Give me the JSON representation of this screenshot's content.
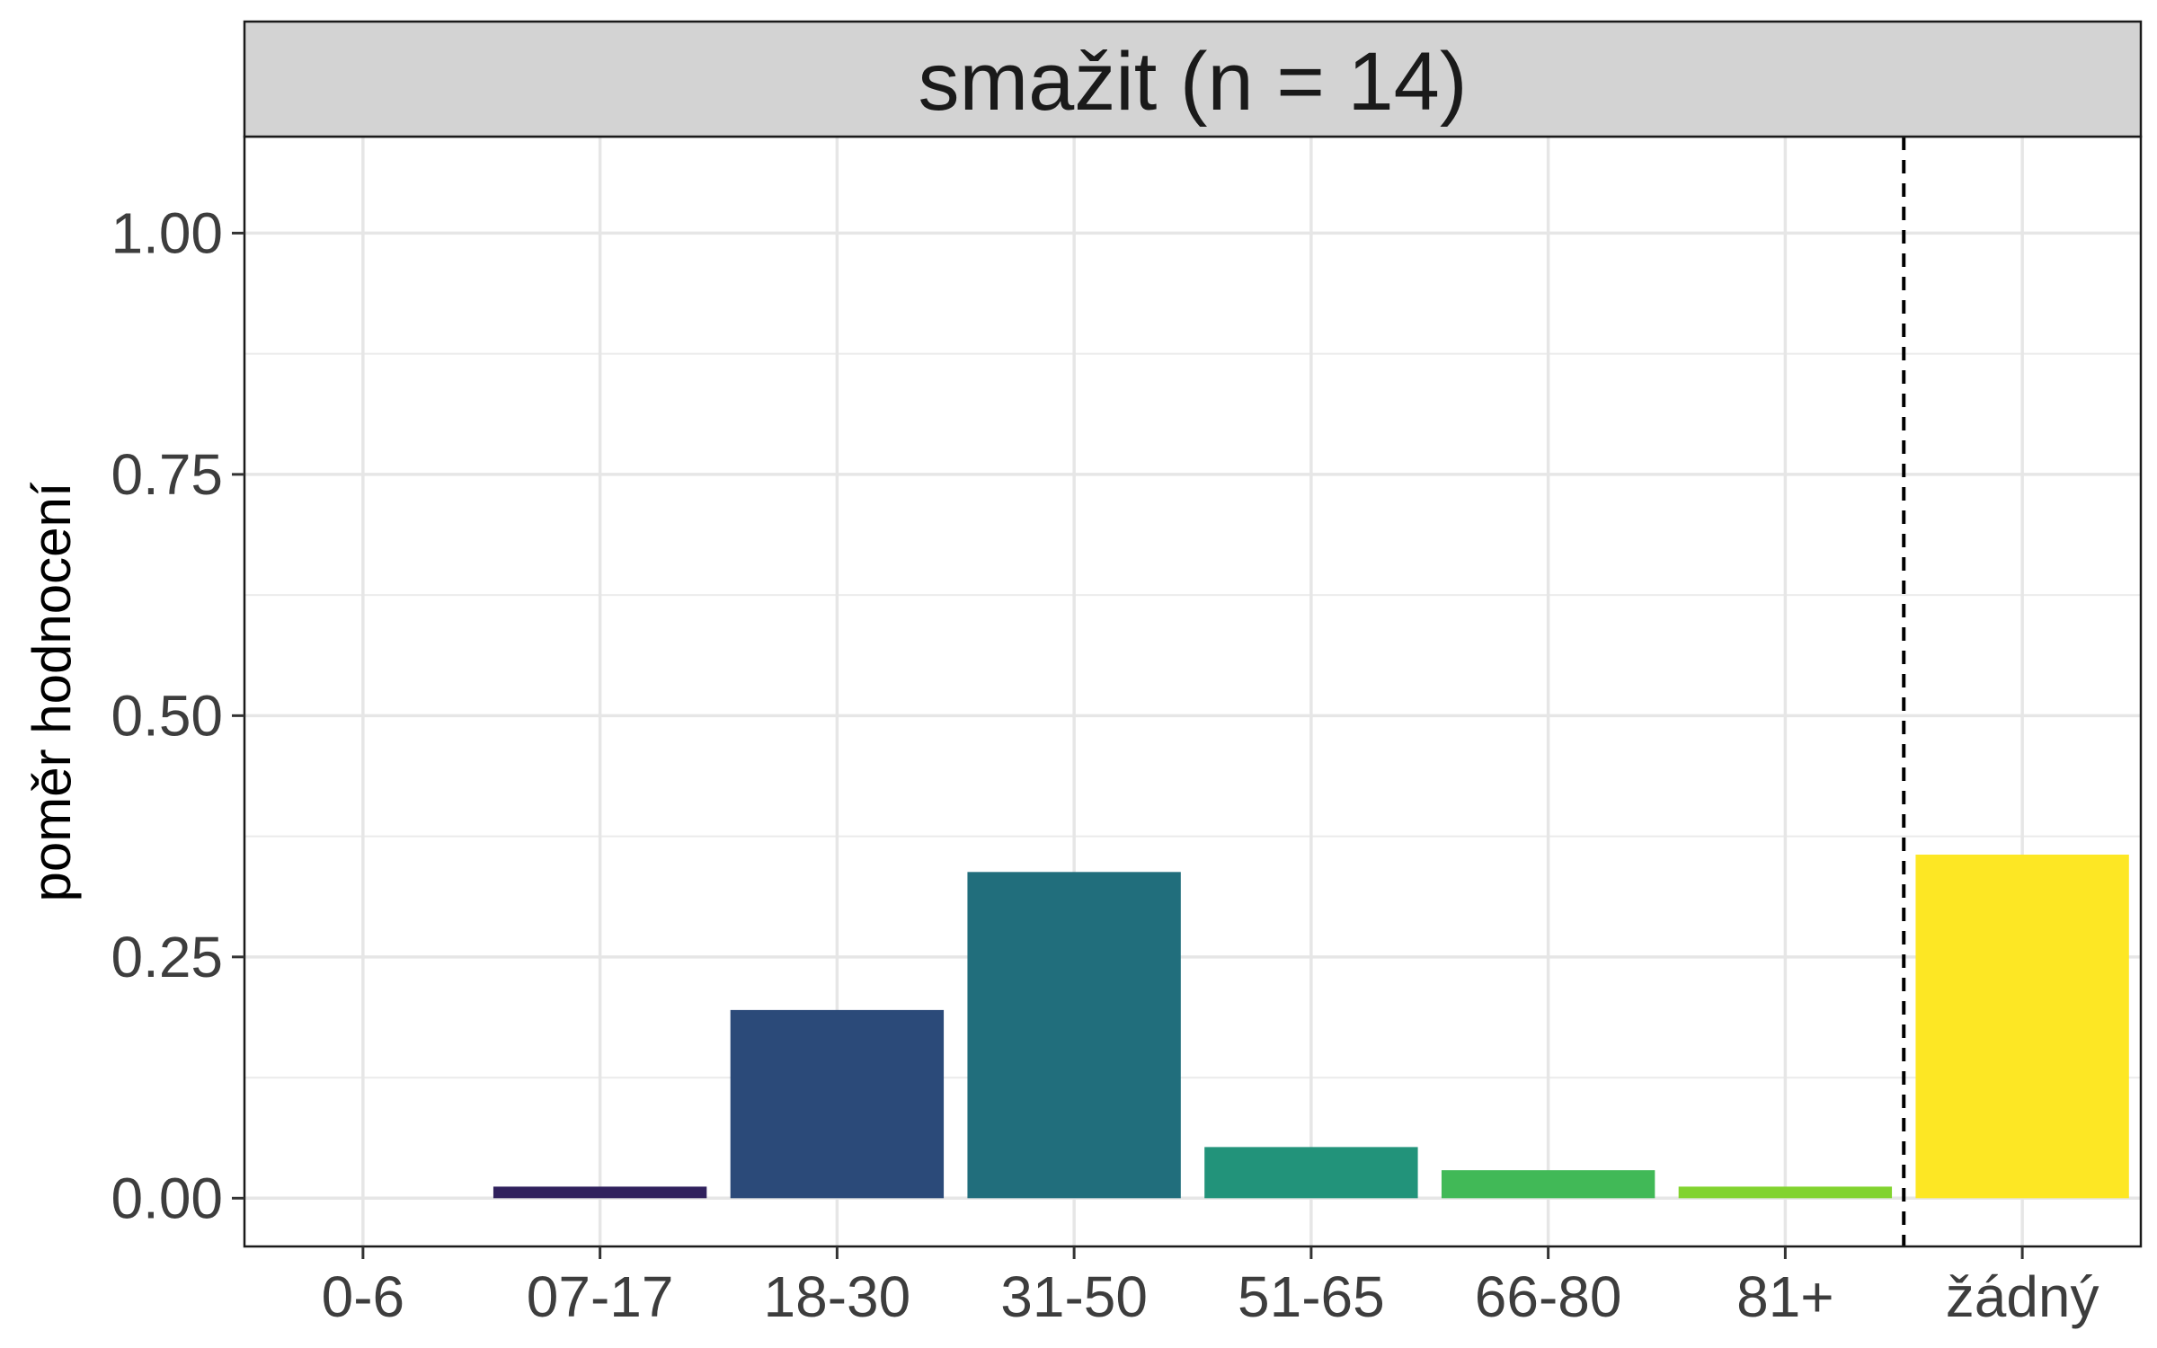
{
  "chart_data": {
    "type": "bar",
    "title": "smažit (n = 14)",
    "xlabel": "",
    "ylabel": "poměr hodnocení",
    "categories": [
      "0-6",
      "07-17",
      "18-30",
      "31-50",
      "51-65",
      "66-80",
      "81+",
      "žádný"
    ],
    "values": [
      0.0,
      0.012,
      0.195,
      0.338,
      0.053,
      0.029,
      0.012,
      0.356
    ],
    "colors": [
      "#440154",
      "#30215d",
      "#2b4a79",
      "#216e7c",
      "#22937a",
      "#41b957",
      "#82d32f",
      "#fde724"
    ],
    "ylim": [
      -0.05,
      1.1
    ],
    "yticks": [
      0.0,
      0.25,
      0.5,
      0.75,
      1.0
    ],
    "ytick_labels": [
      "0.00",
      "0.25",
      "0.50",
      "0.75",
      "1.00"
    ],
    "grid": true,
    "separator_after_category": "81+",
    "separator_style": "dashed",
    "strip_background": "#d3d3d3"
  }
}
